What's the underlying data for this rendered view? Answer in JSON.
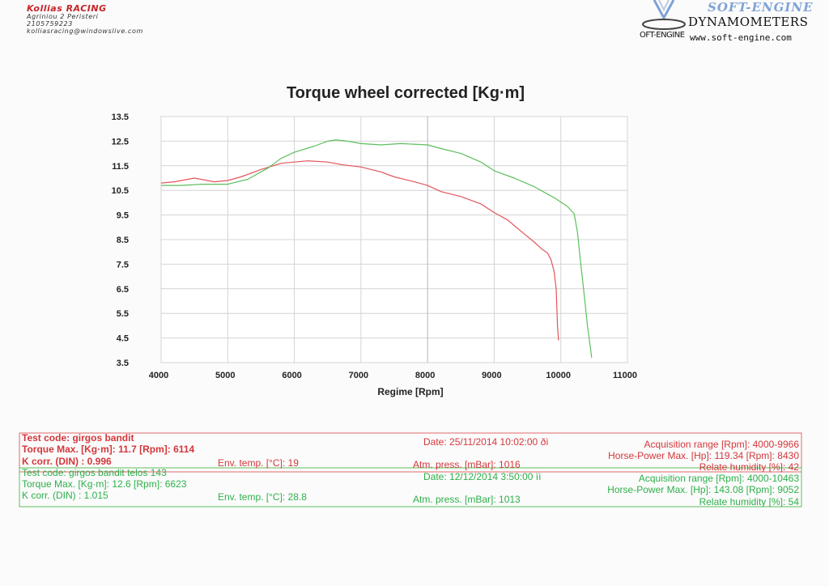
{
  "header": {
    "company": "Kollias RACING",
    "address": "Agriniou 2 Peristeri",
    "phone": "2105759223",
    "email": "kolliasracing@windowslive.com"
  },
  "logo": {
    "brand": "SOFT-ENGINE",
    "product": "DYNAMOMETERS",
    "url": "www.soft-engine.com",
    "sub": "OFT-ENGINE"
  },
  "chart_data": {
    "type": "line",
    "title": "Torque wheel corrected [Kg·m]",
    "xlabel": "Regime [Rpm]",
    "ylabel": "",
    "xlim": [
      4000,
      11000
    ],
    "ylim": [
      3.5,
      13.5
    ],
    "x_ticks": [
      "4000",
      "5000",
      "6000",
      "7000",
      "8000",
      "9000",
      "10000",
      "11000"
    ],
    "y_ticks": [
      "13.5",
      "12.5",
      "11.5",
      "10.5",
      "9.5",
      "8.5",
      "7.5",
      "6.5",
      "5.5",
      "4.5",
      "3.5"
    ],
    "grid": true,
    "series": [
      {
        "color": "#e4555a",
        "x": [
          4000,
          4200,
          4500,
          4800,
          5000,
          5200,
          5500,
          5800,
          6000,
          6200,
          6500,
          6700,
          7000,
          7300,
          7500,
          7800,
          8000,
          8200,
          8500,
          8800,
          9000,
          9200,
          9400,
          9600,
          9700,
          9800,
          9850,
          9900,
          9930,
          9950,
          9966
        ],
        "y": [
          10.8,
          10.85,
          11.0,
          10.85,
          10.9,
          11.05,
          11.35,
          11.6,
          11.65,
          11.7,
          11.65,
          11.55,
          11.45,
          11.25,
          11.05,
          10.85,
          10.7,
          10.45,
          10.25,
          9.95,
          9.6,
          9.3,
          8.85,
          8.4,
          8.15,
          7.95,
          7.7,
          7.2,
          6.5,
          5.0,
          4.4
        ]
      },
      {
        "color": "#5cbf5c",
        "x": [
          4000,
          4300,
          4600,
          5000,
          5300,
          5600,
          5800,
          6000,
          6300,
          6500,
          6623,
          6800,
          7000,
          7300,
          7600,
          8000,
          8200,
          8500,
          8800,
          9000,
          9300,
          9600,
          9900,
          10100,
          10200,
          10250,
          10300,
          10350,
          10400,
          10450,
          10463
        ],
        "y": [
          10.7,
          10.7,
          10.75,
          10.75,
          10.95,
          11.4,
          11.8,
          12.05,
          12.3,
          12.5,
          12.55,
          12.5,
          12.4,
          12.35,
          12.4,
          12.35,
          12.2,
          12.0,
          11.65,
          11.3,
          11.0,
          10.65,
          10.2,
          9.85,
          9.55,
          8.8,
          7.5,
          6.3,
          5.0,
          4.0,
          3.7
        ]
      }
    ]
  },
  "info": {
    "run1": {
      "test_code": "Test code: girgos bandit",
      "torque_max": "Torque Max. [Kg·m]: 11.7  [Rpm]: 6114",
      "k_corr": "K corr. (DIN) : 0.996",
      "env_temp": "Env. temp. [°C]: 19",
      "date": "Date: 25/11/2014   10:02:00 ðì",
      "atm_press": "Atm. press. [mBar]: 1016",
      "acq_range": "Acquisition range [Rpm]: 4000-9966",
      "hp_max": "Horse-Power Max. [Hp]: 119.34  [Rpm]: 8430",
      "humidity": "Relate humidity [%]: 42"
    },
    "run2": {
      "test_code": "Test code: girgos bandit telos 143",
      "torque_max": "Torque Max. [Kg·m]: 12.6  [Rpm]: 6623",
      "k_corr": "K corr. (DIN) : 1.015",
      "env_temp": "Env. temp. [°C]: 28.8",
      "date": "Date: 12/12/2014   3:50:00 ìì",
      "atm_press": "Atm. press. [mBar]: 1013",
      "acq_range": "Acquisition range [Rpm]: 4000-10463",
      "hp_max": "Horse-Power Max. [Hp]: 143.08  [Rpm]: 9052",
      "humidity": "Relate humidity [%]: 54"
    }
  }
}
